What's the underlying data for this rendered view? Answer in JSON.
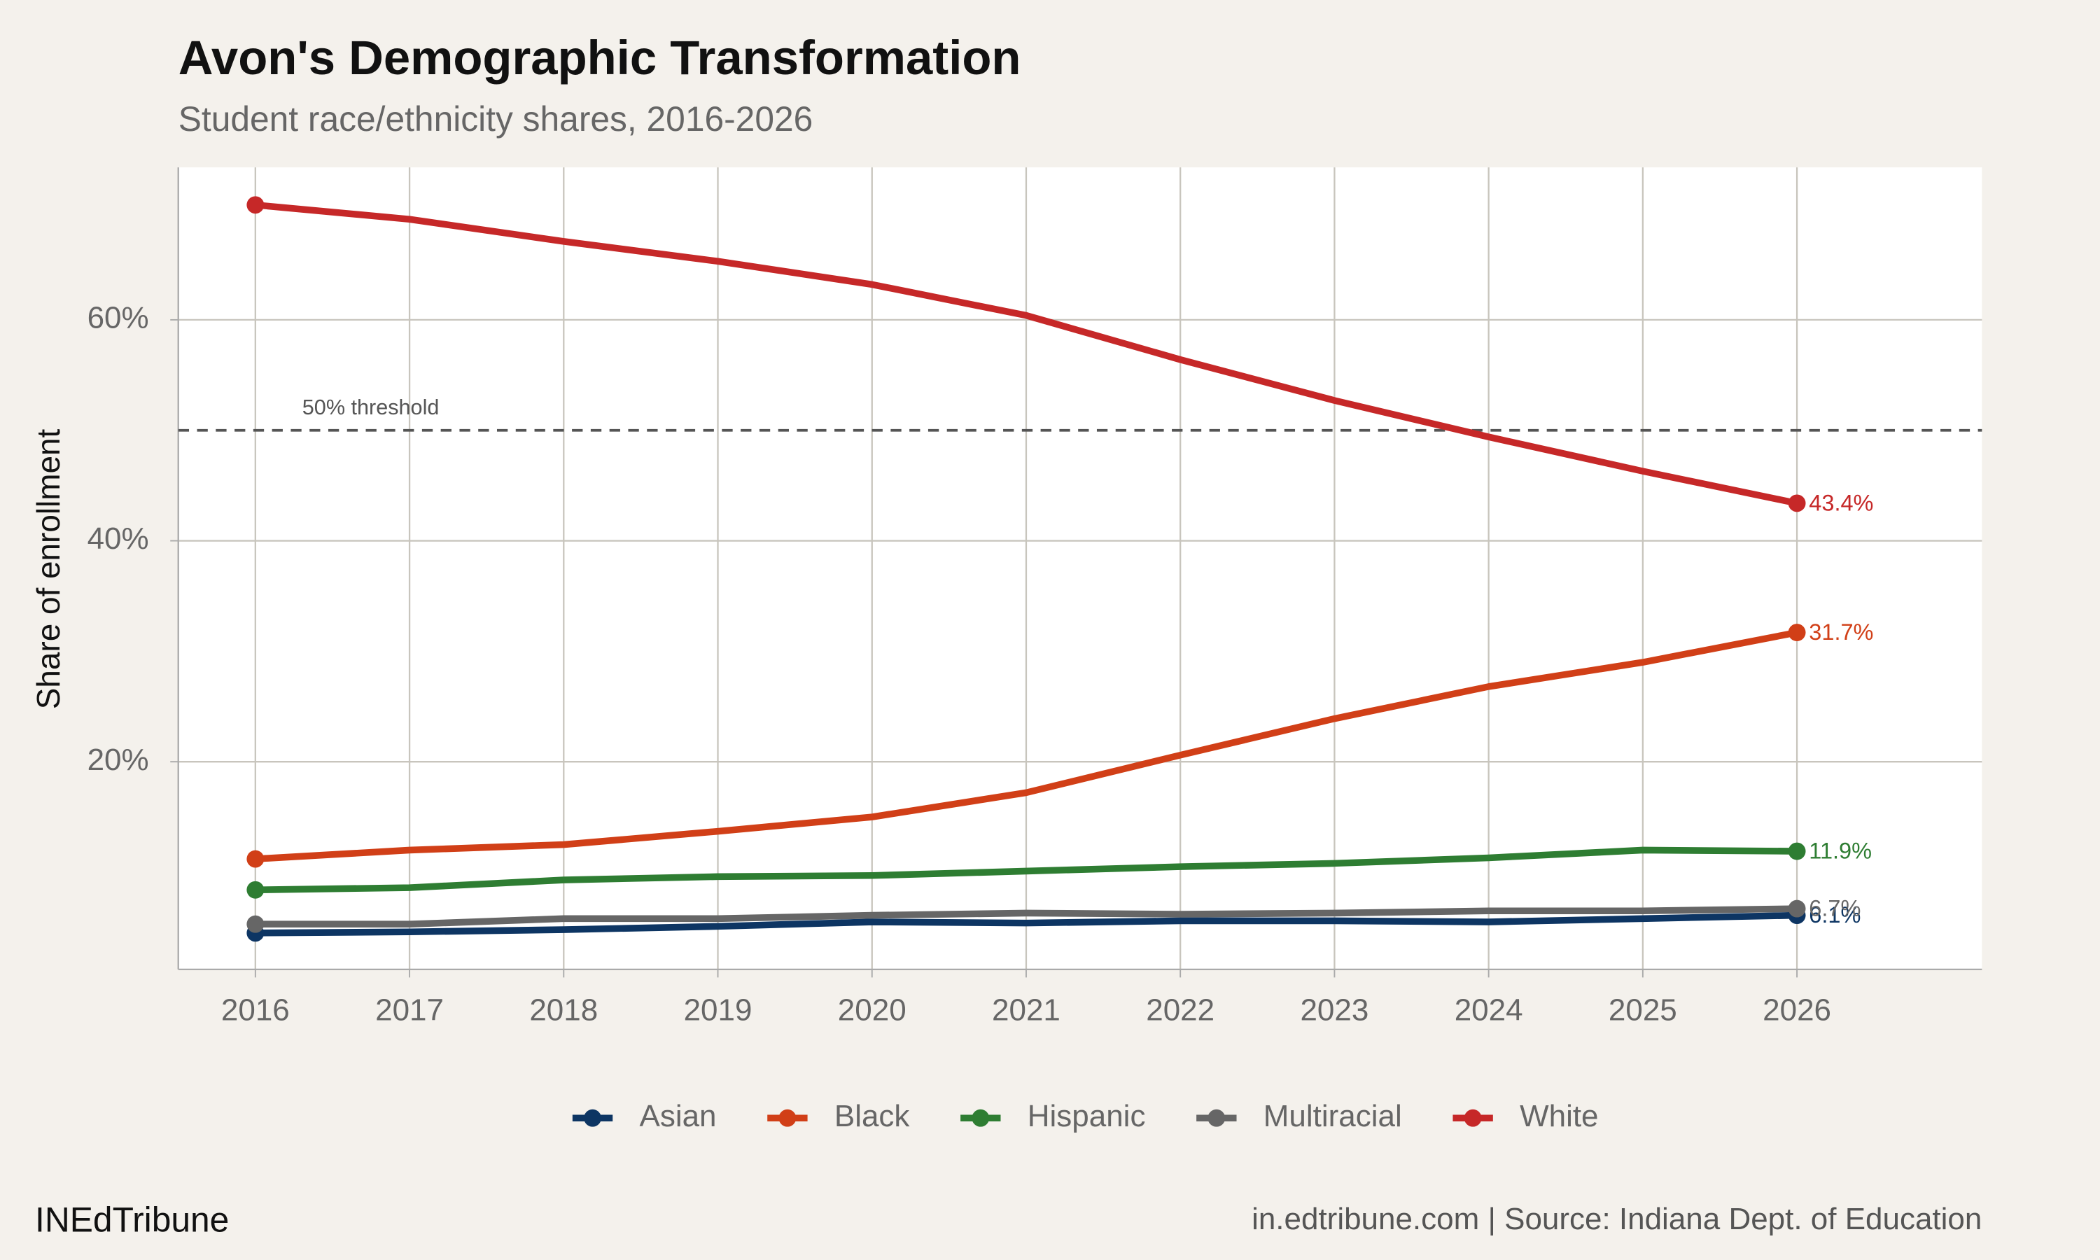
{
  "chart_data": {
    "type": "line",
    "title": "Avon's Demographic Transformation",
    "subtitle": "Student race/ethnicity shares, 2016-2026",
    "y_label": "Share of enrollment",
    "caption_left": "INEdTribune",
    "caption_right": "in.edtribune.com | Source: Indiana Dept. of Education",
    "x": [
      2016,
      2017,
      2018,
      2019,
      2020,
      2021,
      2022,
      2023,
      2024,
      2025,
      2026
    ],
    "xlim": [
      2015.5,
      2027.2
    ],
    "xticks": [
      2016,
      2017,
      2018,
      2019,
      2020,
      2021,
      2022,
      2023,
      2024,
      2025,
      2026
    ],
    "ylim": [
      1.2,
      73.8
    ],
    "yticks": [
      {
        "value": 20,
        "label": "20%"
      },
      {
        "value": 40,
        "label": "40%"
      },
      {
        "value": 60,
        "label": "60%"
      }
    ],
    "grid": true,
    "legend": "bottom",
    "threshold": {
      "value": 50,
      "label": "50% threshold"
    },
    "series": [
      {
        "name": "Asian",
        "color": "#0d3563",
        "values": [
          4.5,
          4.6,
          4.8,
          5.1,
          5.5,
          5.4,
          5.6,
          5.6,
          5.5,
          5.8,
          6.1
        ],
        "value_labels": [
          null,
          null,
          null,
          null,
          null,
          null,
          null,
          null,
          null,
          null,
          "6.1%"
        ]
      },
      {
        "name": "Black",
        "color": "#d13f17",
        "values": [
          11.2,
          12.0,
          12.5,
          13.7,
          15.0,
          17.2,
          20.6,
          23.9,
          26.8,
          29.0,
          31.7
        ],
        "value_labels": [
          null,
          null,
          null,
          null,
          null,
          null,
          null,
          null,
          null,
          null,
          "31.7%"
        ]
      },
      {
        "name": "Hispanic",
        "color": "#2e7d32",
        "values": [
          8.4,
          8.6,
          9.3,
          9.6,
          9.7,
          10.1,
          10.5,
          10.8,
          11.3,
          12.0,
          11.9
        ],
        "value_labels": [
          null,
          null,
          null,
          null,
          null,
          null,
          null,
          null,
          null,
          null,
          "11.9%"
        ]
      },
      {
        "name": "Multiracial",
        "color": "#666666",
        "values": [
          5.3,
          5.3,
          5.8,
          5.8,
          6.1,
          6.3,
          6.2,
          6.3,
          6.5,
          6.5,
          6.7
        ],
        "value_labels": [
          null,
          null,
          null,
          null,
          null,
          null,
          null,
          null,
          null,
          null,
          "6.7%"
        ]
      },
      {
        "name": "White",
        "color": "#c62828",
        "values": [
          70.4,
          69.1,
          67.1,
          65.3,
          63.2,
          60.4,
          56.4,
          52.7,
          49.4,
          46.3,
          43.4
        ],
        "value_labels": [
          null,
          null,
          null,
          null,
          null,
          null,
          null,
          null,
          null,
          null,
          "43.4%"
        ]
      }
    ]
  }
}
